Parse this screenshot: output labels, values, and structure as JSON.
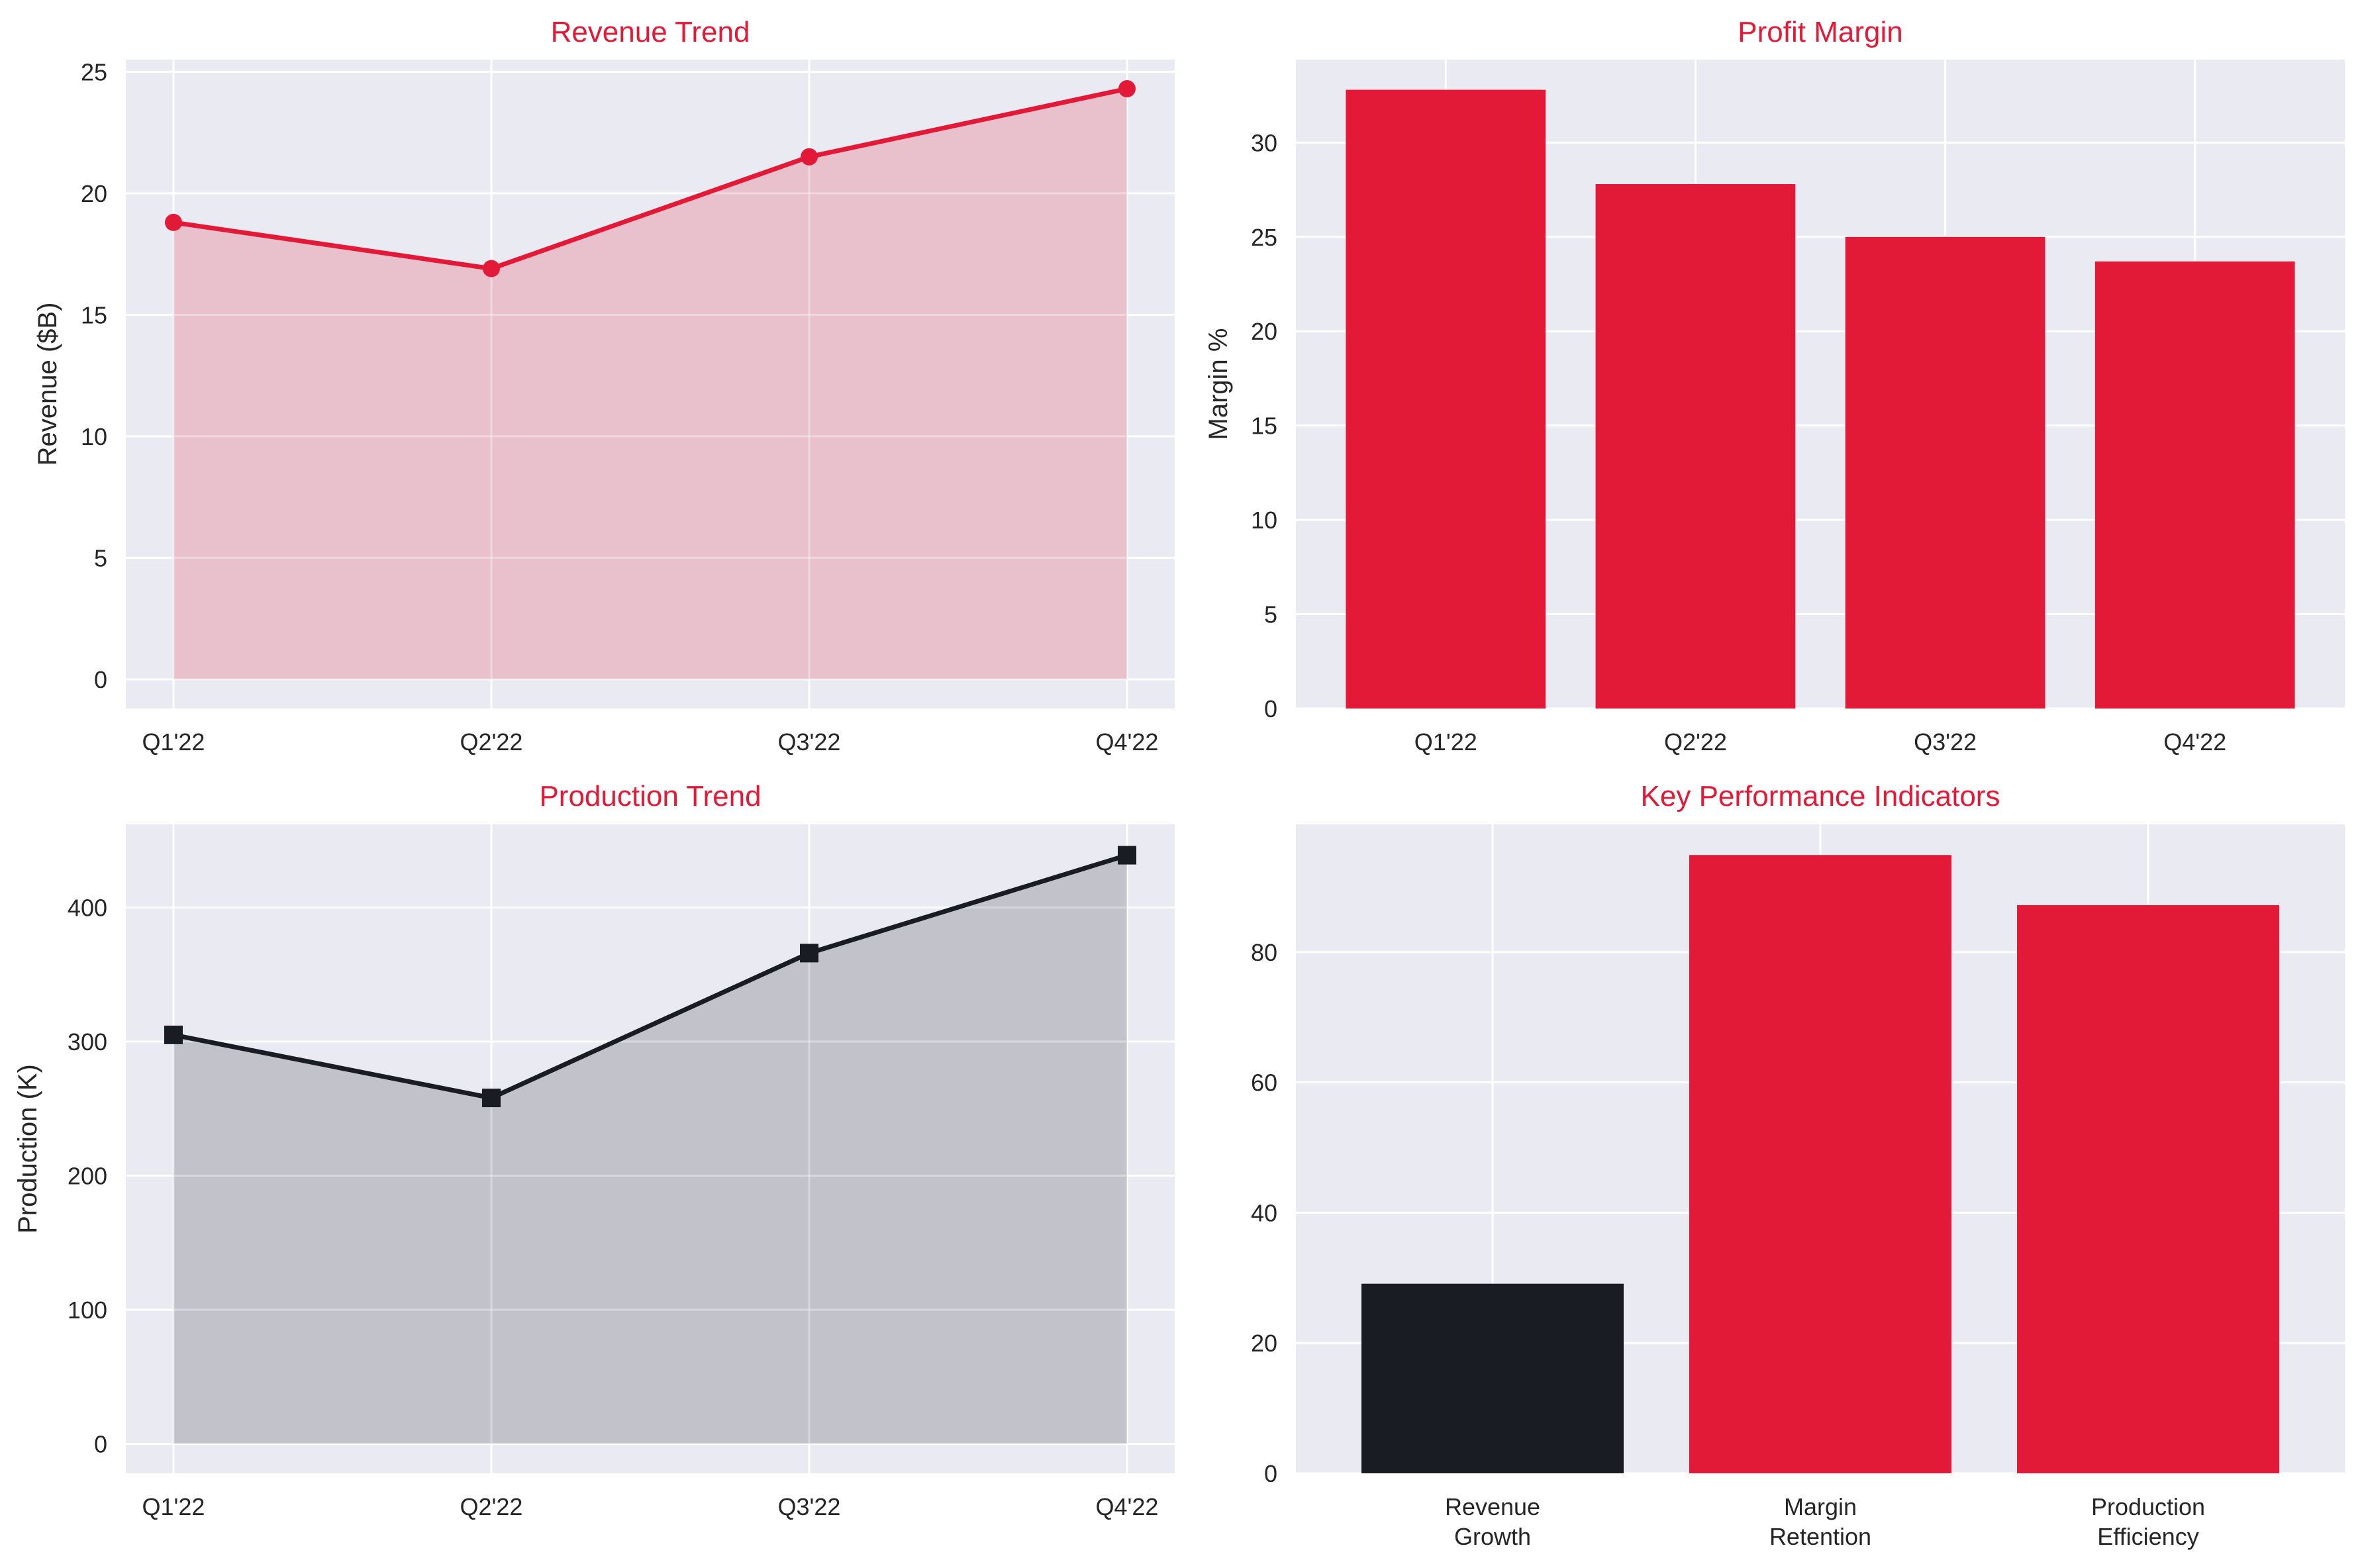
{
  "colors": {
    "accent": "#e31a37",
    "dark": "#1a1c24",
    "plot_background": "#eaeaf2",
    "grid": "#ffffff",
    "revenue_fill": "#e8bfca",
    "production_fill": "#bfc0c7"
  },
  "chart_data": [
    {
      "type": "area",
      "title": "Revenue Trend",
      "xlabel": "",
      "ylabel": "Revenue ($B)",
      "categories": [
        "Q1'22",
        "Q2'22",
        "Q3'22",
        "Q4'22"
      ],
      "values": [
        18.8,
        16.9,
        21.5,
        24.3
      ],
      "ylim": [
        -1.2,
        25.5
      ],
      "yticks": [
        0,
        5,
        10,
        15,
        20,
        25
      ],
      "marker": "circle",
      "grid": true
    },
    {
      "type": "bar",
      "title": "Profit Margin",
      "xlabel": "",
      "ylabel": "Margin %",
      "categories": [
        "Q1'22",
        "Q2'22",
        "Q3'22",
        "Q4'22"
      ],
      "values": [
        32.8,
        27.8,
        25.0,
        23.7
      ],
      "ylim": [
        0,
        34.4
      ],
      "yticks": [
        0,
        5,
        10,
        15,
        20,
        25,
        30
      ],
      "grid": true
    },
    {
      "type": "area",
      "title": "Production Trend",
      "xlabel": "",
      "ylabel": "Production (K)",
      "categories": [
        "Q1'22",
        "Q2'22",
        "Q3'22",
        "Q4'22"
      ],
      "values": [
        305,
        258,
        366,
        439
      ],
      "ylim": [
        -22,
        462
      ],
      "yticks": [
        0,
        100,
        200,
        300,
        400
      ],
      "marker": "square",
      "grid": true
    },
    {
      "type": "bar",
      "title": "Key Performance Indicators",
      "xlabel": "",
      "ylabel": "",
      "categories": [
        "Revenue\nGrowth",
        "Margin\nRetention",
        "Production\nEfficiency"
      ],
      "values": [
        29.1,
        94.9,
        87.2
      ],
      "bar_colors": [
        "#1a1c24",
        "#e31a37",
        "#e31a37"
      ],
      "ylim": [
        0,
        99.6
      ],
      "yticks": [
        0,
        20,
        40,
        60,
        80
      ],
      "grid": true
    }
  ]
}
